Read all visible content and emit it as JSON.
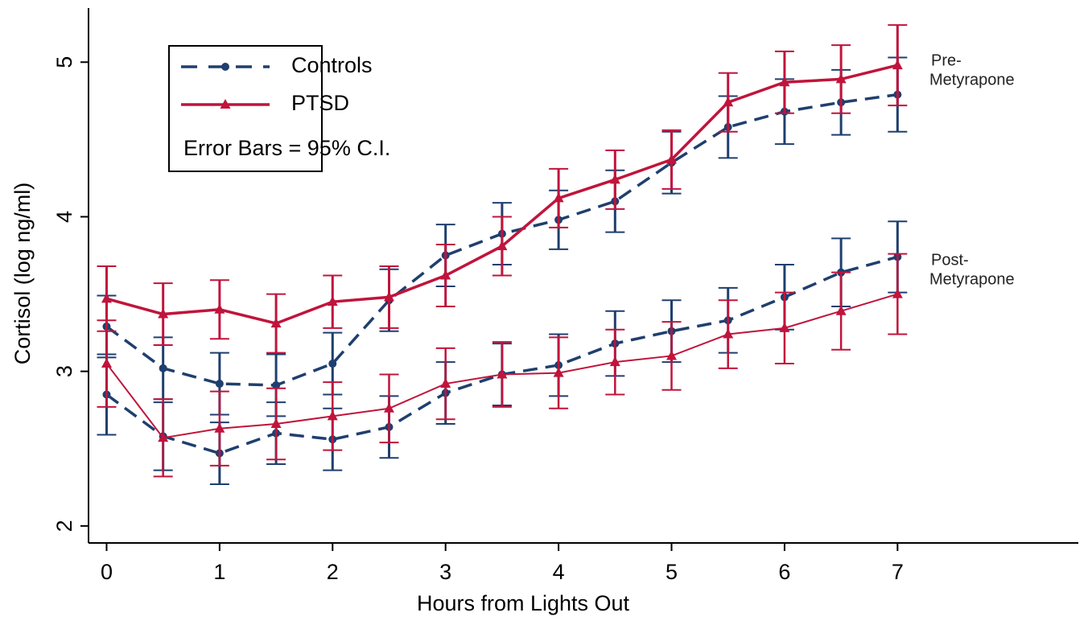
{
  "chart_data": {
    "type": "line",
    "x_label": "Hours from Lights Out",
    "y_label": "Cortisol (log ng/ml)",
    "legend_note": "Error Bars = 95% C.I.",
    "x": [
      0,
      0.5,
      1,
      1.5,
      2,
      2.5,
      3,
      3.5,
      4,
      4.5,
      5,
      5.5,
      6,
      6.5,
      7
    ],
    "xlim": [
      -0.16,
      8.6
    ],
    "ylim": [
      1.89,
      5.35
    ],
    "xticks": [
      0,
      1,
      2,
      3,
      4,
      5,
      6,
      7
    ],
    "yticks": [
      2,
      3,
      4,
      5
    ],
    "groups": [
      {
        "label": [
          "Pre-",
          "Metyrapone"
        ],
        "series": [
          {
            "name": "Controls",
            "color": "#1f3f6e",
            "style": "dashed",
            "marker": "circle",
            "values": [
              3.29,
              3.02,
              2.92,
              2.91,
              3.05,
              3.46,
              3.75,
              3.89,
              3.98,
              4.1,
              4.35,
              4.58,
              4.68,
              4.74,
              4.79
            ],
            "errors": [
              0.2,
              0.2,
              0.2,
              0.2,
              0.2,
              0.2,
              0.2,
              0.2,
              0.19,
              0.2,
              0.2,
              0.2,
              0.21,
              0.21,
              0.24
            ]
          },
          {
            "name": "PTSD",
            "color": "#c0143c",
            "style": "solid",
            "marker": "triangle",
            "values": [
              3.47,
              3.37,
              3.4,
              3.31,
              3.45,
              3.48,
              3.62,
              3.81,
              4.12,
              4.24,
              4.37,
              4.74,
              4.87,
              4.89,
              4.98
            ],
            "errors": [
              0.21,
              0.2,
              0.19,
              0.19,
              0.17,
              0.2,
              0.2,
              0.19,
              0.19,
              0.19,
              0.19,
              0.19,
              0.2,
              0.22,
              0.26
            ]
          }
        ]
      },
      {
        "label": [
          "Post-",
          "Metyrapone"
        ],
        "series": [
          {
            "name": "Controls",
            "color": "#1f3f6e",
            "style": "dashed",
            "marker": "circle",
            "values": [
              2.85,
              2.58,
              2.47,
              2.6,
              2.56,
              2.64,
              2.86,
              2.98,
              3.04,
              3.18,
              3.26,
              3.33,
              3.48,
              3.64,
              3.74
            ],
            "errors": [
              0.26,
              0.22,
              0.2,
              0.2,
              0.2,
              0.2,
              0.2,
              0.2,
              0.2,
              0.21,
              0.2,
              0.21,
              0.21,
              0.22,
              0.23
            ]
          },
          {
            "name": "PTSD",
            "color": "#c0143c",
            "style": "thin",
            "marker": "triangle",
            "values": [
              3.05,
              2.57,
              2.63,
              2.66,
              2.71,
              2.76,
              2.92,
              2.98,
              2.99,
              3.06,
              3.1,
              3.24,
              3.28,
              3.39,
              3.5
            ],
            "errors": [
              0.28,
              0.25,
              0.24,
              0.23,
              0.22,
              0.22,
              0.23,
              0.21,
              0.23,
              0.21,
              0.22,
              0.22,
              0.23,
              0.25,
              0.26
            ]
          }
        ]
      }
    ]
  }
}
